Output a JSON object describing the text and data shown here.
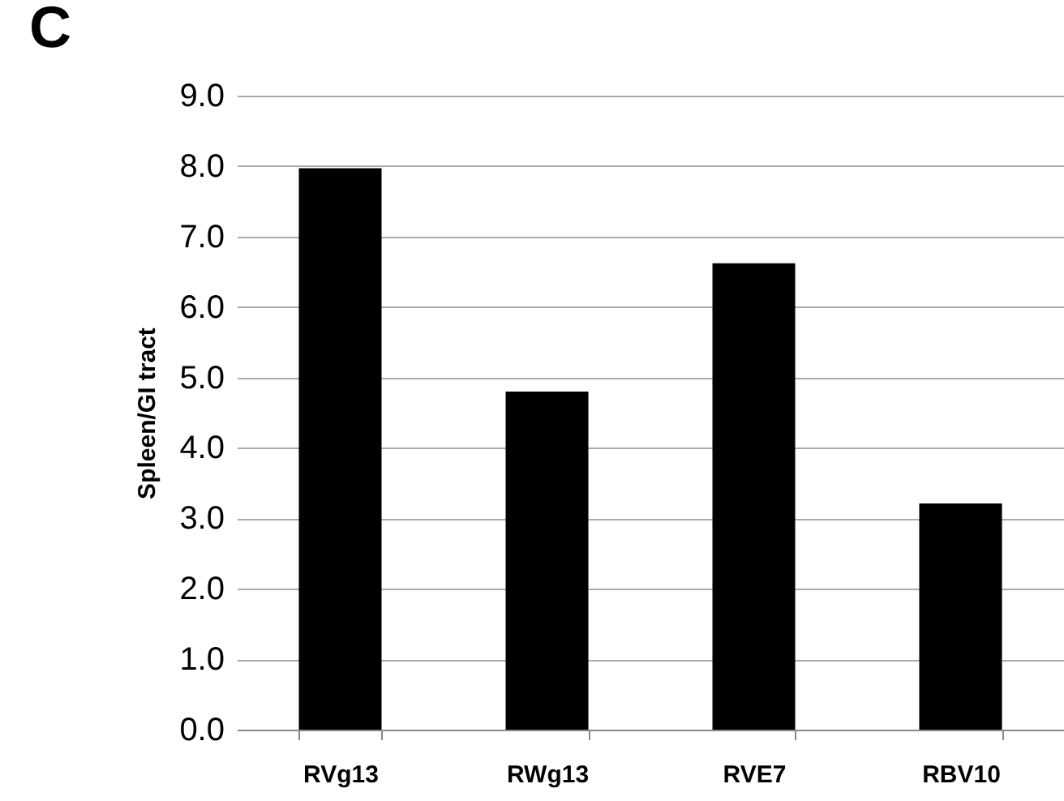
{
  "chart_data": {
    "type": "bar",
    "title": "C",
    "ylabel": "Spleen/GI tract",
    "categories": [
      "RVg13",
      "RWg13",
      "RVE7",
      "RBV10"
    ],
    "values": [
      7.97,
      4.8,
      6.62,
      3.21
    ],
    "color": "#000000",
    "ylim": [
      0,
      9
    ],
    "yticks": [
      {
        "value": 0,
        "label": "0.0"
      },
      {
        "value": 1,
        "label": "1.0"
      },
      {
        "value": 2,
        "label": "2.0"
      },
      {
        "value": 3,
        "label": "3.0"
      },
      {
        "value": 4,
        "label": "4.0"
      },
      {
        "value": 5,
        "label": "5.0"
      },
      {
        "value": 6,
        "label": "6.0"
      },
      {
        "value": 7,
        "label": "7.0"
      },
      {
        "value": 8,
        "label": "8.0"
      },
      {
        "value": 9,
        "label": "9.0"
      }
    ],
    "grid": "y"
  }
}
